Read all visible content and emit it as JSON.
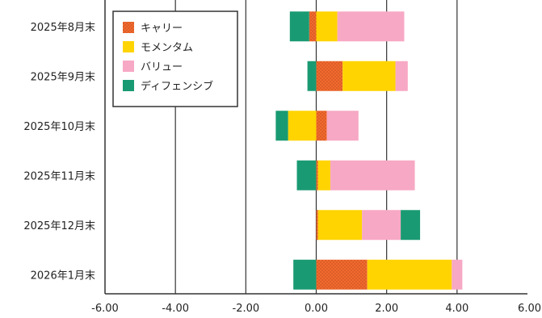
{
  "chart_data": {
    "type": "bar",
    "orientation": "horizontal",
    "stacked": true,
    "title": "",
    "xlabel": "",
    "ylabel": "",
    "xlim": [
      -6,
      6
    ],
    "x_ticks": [
      -6,
      -4,
      -2,
      0,
      2,
      4,
      6
    ],
    "x_tick_labels": [
      "-6.00",
      "-4.00",
      "-2.00",
      "0.00",
      "2.00",
      "4.00",
      "6.00"
    ],
    "grid": "vertical",
    "legend_position": "top-left",
    "categories": [
      "2025年8月末",
      "2025年9月末",
      "2025年10月末",
      "2025年11月末",
      "2025年12月末",
      "2026年1月末"
    ],
    "series": [
      {
        "name": "キャリー",
        "color": "#f26a2e",
        "pattern": "dotted",
        "values": [
          -0.2,
          0.75,
          0.3,
          0.05,
          0.05,
          1.45
        ]
      },
      {
        "name": "モメンタム",
        "color": "#ffd400",
        "values": [
          0.6,
          1.5,
          -0.8,
          0.35,
          1.25,
          2.4
        ]
      },
      {
        "name": "バリュー",
        "color": "#f7a8c4",
        "values": [
          1.9,
          0.35,
          0.9,
          2.4,
          1.1,
          0.3
        ]
      },
      {
        "name": "ディフェンシブ",
        "color": "#1a9a72",
        "values": [
          -0.55,
          -0.25,
          -0.35,
          -0.55,
          0.55,
          -0.65
        ]
      }
    ]
  }
}
